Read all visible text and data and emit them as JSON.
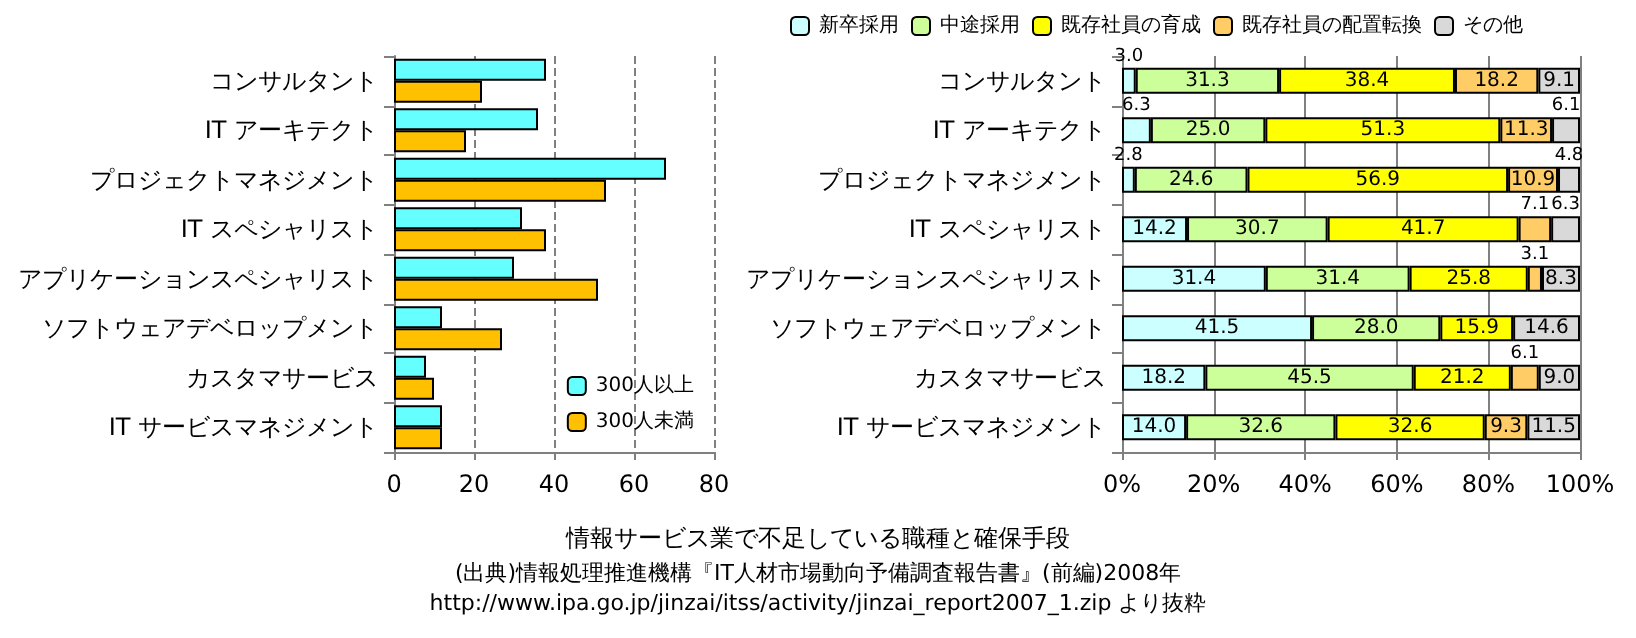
{
  "chart_data": [
    {
      "type": "bar",
      "orientation": "horizontal",
      "categories": [
        "コンサルタント",
        "IT アーキテクト",
        "プロジェクトマネジメント",
        "IT スペシャリスト",
        "アプリケーションスペシャリスト",
        "ソフトウェアデベロップメント",
        "カスタマサービス",
        "IT サービスマネジメント"
      ],
      "series": [
        {
          "name": "300人以上",
          "color": "#66ffff",
          "values": [
            38,
            36,
            68,
            32,
            30,
            12,
            8,
            12
          ]
        },
        {
          "name": "300人未満",
          "color": "#ffc000",
          "values": [
            22,
            18,
            53,
            38,
            51,
            27,
            10,
            12
          ]
        }
      ],
      "xlim": [
        0,
        80
      ],
      "xticks": [
        0,
        20,
        40,
        60,
        80
      ],
      "grid": "x",
      "legend": "bottom right"
    },
    {
      "type": "bar",
      "orientation": "horizontal",
      "stacked": true,
      "categories": [
        "コンサルタント",
        "IT アーキテクト",
        "プロジェクトマネジメント",
        "IT スペシャリスト",
        "アプリケーションスペシャリスト",
        "ソフトウェアデベロップメント",
        "カスタマサービス",
        "IT サービスマネジメント"
      ],
      "series": [
        {
          "name": "新卒採用",
          "color": "#ccffff",
          "values": [
            3.0,
            6.3,
            2.8,
            14.2,
            31.4,
            41.5,
            18.2,
            14.0
          ],
          "value_labels": [
            "3.0",
            "6.3",
            "2.8",
            "14.2",
            "31.4",
            "41.5",
            "18.2",
            "14.0"
          ]
        },
        {
          "name": "中途採用",
          "color": "#ccff99",
          "values": [
            31.3,
            25.0,
            24.6,
            30.7,
            31.4,
            28.0,
            45.5,
            32.6
          ],
          "value_labels": [
            "31.3",
            "25.0",
            "24.6",
            "30.7",
            "31.4",
            "28.0",
            "45.5",
            "32.6"
          ]
        },
        {
          "name": "既存社員の育成",
          "color": "#ffff00",
          "values": [
            38.4,
            51.3,
            56.9,
            41.7,
            25.8,
            15.9,
            21.2,
            32.6
          ],
          "value_labels": [
            "38.4",
            "51.3",
            "56.9",
            "41.7",
            "25.8",
            "15.9",
            "21.2",
            "32.6"
          ]
        },
        {
          "name": "既存社員の配置転換",
          "color": "#ffcc66",
          "values": [
            18.2,
            11.3,
            10.9,
            7.1,
            3.1,
            null,
            6.1,
            9.3
          ],
          "value_labels": [
            "18.2",
            "11.3",
            "10.9",
            "7.1",
            "3.1",
            null,
            "6.1",
            "9.3"
          ]
        },
        {
          "name": "その他",
          "color": "#d9d9d9",
          "values": [
            9.1,
            6.1,
            4.8,
            6.3,
            8.3,
            14.6,
            9.0,
            11.5
          ],
          "value_labels": [
            "9.1",
            "6.1",
            "4.8",
            "6.3",
            "8.3",
            "14.6",
            "9.0",
            "11.5"
          ]
        }
      ],
      "xlim": [
        0,
        100
      ],
      "xticks": [
        {
          "value": 0,
          "label": "0%"
        },
        {
          "value": 20,
          "label": "20%"
        },
        {
          "value": 40,
          "label": "40%"
        },
        {
          "value": 60,
          "label": "60%"
        },
        {
          "value": 80,
          "label": "80%"
        },
        {
          "value": 100,
          "label": "100%"
        }
      ],
      "grid": "x",
      "legend": "top",
      "title": "情報サービス業で不足している職種と確保手段",
      "annotations": [
        "(出典)情報処理推進機構『IT人材市場動向予備調査報告書』(前編)2008年",
        "http://www.ipa.go.jp/jinzai/itss/activity/jinzai_report2007_1.zip より抜粋"
      ]
    }
  ]
}
